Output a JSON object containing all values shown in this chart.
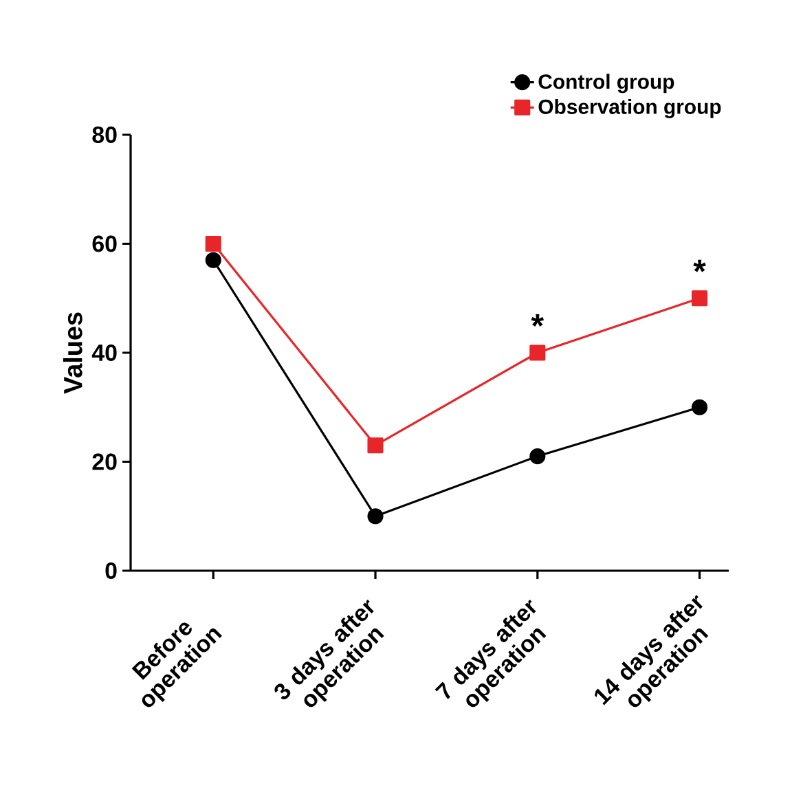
{
  "chart_data": {
    "type": "line",
    "ylabel": "Values",
    "categories": [
      "Before operation",
      "3 days after operation",
      "7 days after operation",
      "14 days after operation"
    ],
    "series": [
      {
        "name": "Control group",
        "color": "#000000",
        "marker": "circle",
        "values": [
          57,
          10,
          21,
          30
        ]
      },
      {
        "name": "Observation group",
        "color": "#e8262a",
        "marker": "square",
        "values": [
          60,
          23,
          40,
          50
        ]
      }
    ],
    "ylim": [
      0,
      80
    ],
    "yticks": [
      0,
      20,
      40,
      60,
      80
    ],
    "grid": false,
    "legend": "top right",
    "line_style": "solid",
    "annotations": [
      "*",
      "*"
    ]
  }
}
